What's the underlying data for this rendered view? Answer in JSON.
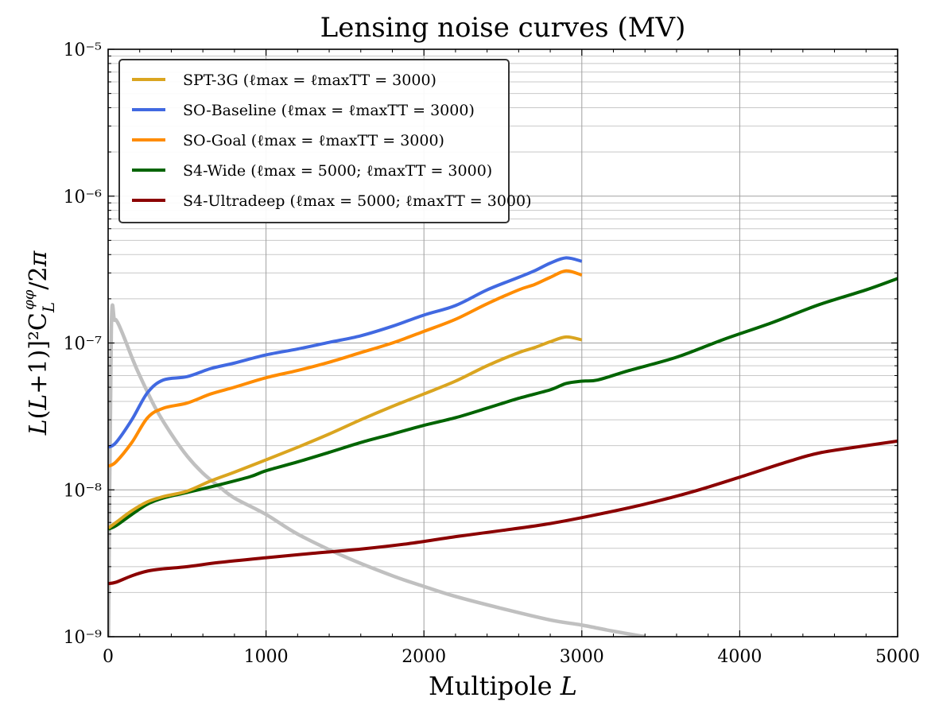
{
  "chart_data": {
    "type": "line",
    "title": "Lensing noise curves (MV)",
    "xlabel": "Multipole L",
    "ylabel": "L(L+1)]²C_L^{φφ}/2π",
    "xlim": [
      0,
      5000
    ],
    "ylim": [
      1e-09,
      1e-05
    ],
    "yscale": "log",
    "grid": true,
    "legend_position": "top-left",
    "x_ticks": [
      "0",
      "1000",
      "2000",
      "3000",
      "4000",
      "5000"
    ],
    "y_ticks": [
      "10⁻⁹",
      "10⁻⁸",
      "10⁻⁷",
      "10⁻⁶",
      "10⁻⁵"
    ],
    "series": [
      {
        "name": "SPT-3G (ℓmax = ℓmaxTT = 3000)",
        "color": "#DAA520",
        "x": [
          2,
          50,
          150,
          250,
          350,
          500,
          650,
          800,
          1000,
          1200,
          1400,
          1600,
          1800,
          2000,
          2200,
          2400,
          2600,
          2700,
          2800,
          2900,
          3000
        ],
        "y": [
          5.5e-09,
          6e-09,
          7.2e-09,
          8.3e-09,
          9e-09,
          9.8e-09,
          1.15e-08,
          1.32e-08,
          1.6e-08,
          1.95e-08,
          2.4e-08,
          3e-08,
          3.7e-08,
          4.5e-08,
          5.5e-08,
          7e-08,
          8.6e-08,
          9.3e-08,
          1.02e-07,
          1.1e-07,
          1.05e-07
        ]
      },
      {
        "name": "SO-Baseline (ℓmax = ℓmaxTT = 3000)",
        "color": "#4169E1",
        "x": [
          2,
          50,
          150,
          250,
          350,
          500,
          650,
          800,
          1000,
          1200,
          1400,
          1600,
          1800,
          2000,
          2200,
          2400,
          2600,
          2700,
          2800,
          2900,
          3000
        ],
        "y": [
          1.95e-08,
          2.1e-08,
          3e-08,
          4.6e-08,
          5.6e-08,
          5.9e-08,
          6.7e-08,
          7.3e-08,
          8.3e-08,
          9.1e-08,
          1.01e-07,
          1.12e-07,
          1.3e-07,
          1.55e-07,
          1.8e-07,
          2.3e-07,
          2.8e-07,
          3.1e-07,
          3.5e-07,
          3.8e-07,
          3.6e-07
        ]
      },
      {
        "name": "SO-Goal (ℓmax = ℓmaxTT = 3000)",
        "color": "#FF8C00",
        "x": [
          2,
          50,
          150,
          250,
          350,
          500,
          650,
          800,
          1000,
          1200,
          1400,
          1600,
          1800,
          2000,
          2200,
          2400,
          2600,
          2700,
          2800,
          2900,
          3000
        ],
        "y": [
          1.45e-08,
          1.55e-08,
          2.1e-08,
          3.1e-08,
          3.6e-08,
          3.9e-08,
          4.5e-08,
          5e-08,
          5.8e-08,
          6.5e-08,
          7.4e-08,
          8.6e-08,
          1e-07,
          1.2e-07,
          1.45e-07,
          1.85e-07,
          2.3e-07,
          2.5e-07,
          2.8e-07,
          3.1e-07,
          2.9e-07
        ]
      },
      {
        "name": "S4-Wide (ℓmax = 5000; ℓmaxTT = 3000)",
        "color": "#006400",
        "x": [
          2,
          50,
          150,
          250,
          350,
          500,
          700,
          900,
          1000,
          1200,
          1400,
          1600,
          1800,
          2000,
          2200,
          2400,
          2600,
          2800,
          2900,
          3000,
          3100,
          3300,
          3600,
          3900,
          4200,
          4500,
          4800,
          5000
        ],
        "y": [
          5.4e-09,
          5.7e-09,
          6.8e-09,
          8e-09,
          8.8e-09,
          9.6e-09,
          1.08e-08,
          1.23e-08,
          1.35e-08,
          1.55e-08,
          1.8e-08,
          2.1e-08,
          2.4e-08,
          2.75e-08,
          3.1e-08,
          3.6e-08,
          4.2e-08,
          4.8e-08,
          5.3e-08,
          5.5e-08,
          5.6e-08,
          6.5e-08,
          8e-08,
          1.06e-07,
          1.37e-07,
          1.82e-07,
          2.3e-07,
          2.75e-07
        ]
      },
      {
        "name": "S4-Ultradeep (ℓmax = 5000; ℓmaxTT = 3000)",
        "color": "#8B0000",
        "x": [
          2,
          50,
          150,
          250,
          350,
          500,
          700,
          1000,
          1300,
          1600,
          1900,
          2200,
          2500,
          2800,
          3100,
          3400,
          3700,
          4000,
          4300,
          4500,
          4800,
          5000
        ],
        "y": [
          2.3e-09,
          2.35e-09,
          2.6e-09,
          2.8e-09,
          2.9e-09,
          3e-09,
          3.2e-09,
          3.45e-09,
          3.7e-09,
          3.95e-09,
          4.3e-09,
          4.8e-09,
          5.3e-09,
          5.9e-09,
          6.8e-09,
          8e-09,
          9.7e-09,
          1.22e-08,
          1.55e-08,
          1.78e-08,
          2e-08,
          2.15e-08
        ]
      },
      {
        "name": "",
        "color": "#C0C0C0",
        "x": [
          2,
          20,
          40,
          60,
          100,
          150,
          200,
          300,
          400,
          500,
          600,
          700,
          800,
          1000,
          1200,
          1500,
          1800,
          2000,
          2200,
          2500,
          2800,
          3000,
          3200,
          3400
        ],
        "y": [
          1e-09,
          1.2e-07,
          1.43e-07,
          1.38e-07,
          1.1e-07,
          8e-08,
          6e-08,
          3.6e-08,
          2.4e-08,
          1.7e-08,
          1.3e-08,
          1.06e-08,
          8.8e-09,
          6.8e-09,
          5e-09,
          3.5e-09,
          2.6e-09,
          2.2e-09,
          1.88e-09,
          1.55e-09,
          1.3e-09,
          1.2e-09,
          1.09e-09,
          1e-09
        ]
      }
    ]
  }
}
